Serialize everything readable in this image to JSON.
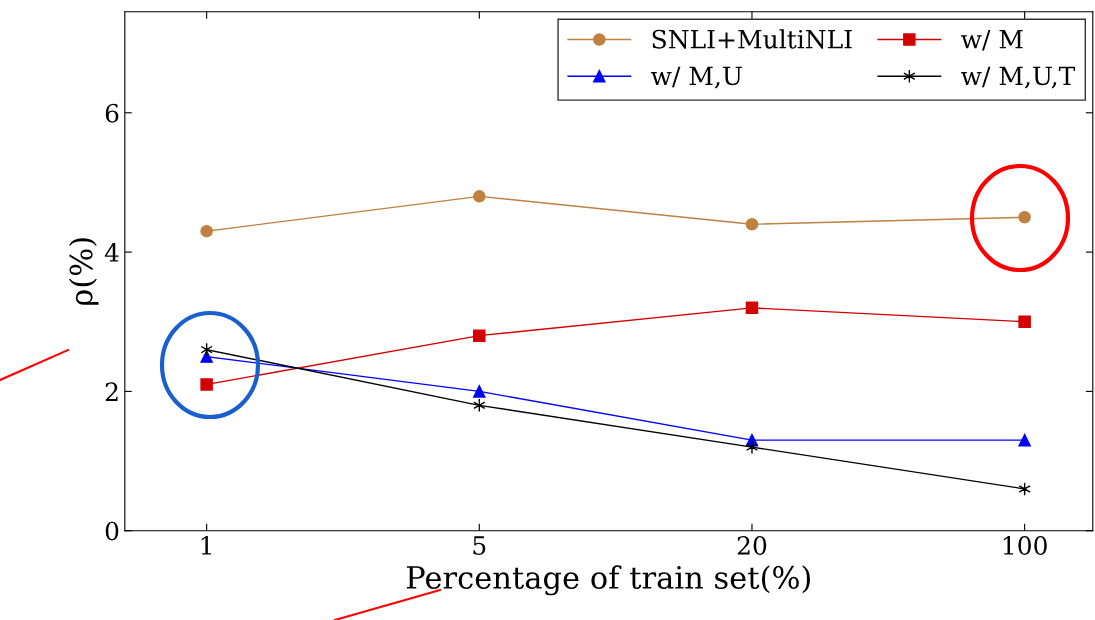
{
  "chart_data": {
    "type": "line",
    "xlabel": "Percentage of train set(%)",
    "ylabel": "ρ(%)",
    "categories": [
      "1",
      "5",
      "20",
      "100"
    ],
    "series": [
      {
        "name": "SNLI+MultiNLI",
        "color": "#bf8040",
        "marker": "circle",
        "values": [
          4.3,
          4.8,
          4.4,
          4.5
        ]
      },
      {
        "name": "w/ M",
        "color": "#d40000",
        "marker": "square",
        "values": [
          2.1,
          2.8,
          3.2,
          3.0
        ]
      },
      {
        "name": "w/ M,U",
        "color": "#0000ff",
        "marker": "triangle",
        "values": [
          2.5,
          2.0,
          1.3,
          1.3
        ]
      },
      {
        "name": "w/ M,U,T",
        "color": "#000000",
        "marker": "cross",
        "values": [
          2.6,
          1.8,
          1.2,
          0.6
        ]
      }
    ],
    "ylim": [
      0,
      7.45
    ],
    "yticks": [
      0,
      2,
      4,
      6
    ],
    "grid": false,
    "legend": "top right",
    "line_style": "solid"
  }
}
